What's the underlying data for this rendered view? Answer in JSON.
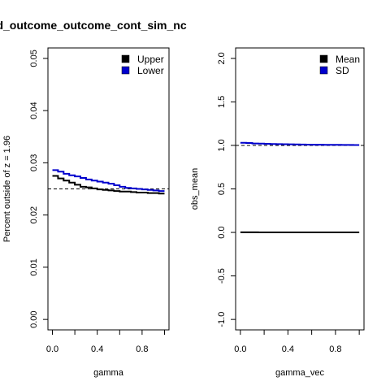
{
  "figure_title": "rd_outcome_outcome_cont_sim_nc",
  "chart_data": [
    {
      "type": "line",
      "title": "",
      "xlabel": "gamma",
      "ylabel": "Percent outside of z = 1.96",
      "xlim": [
        0,
        1
      ],
      "ylim": [
        0,
        0.05
      ],
      "x_ticks": [
        0.0,
        0.4,
        0.8
      ],
      "x_tick_labels": [
        "0.0",
        "0.4",
        "0.8"
      ],
      "x_minor_ticks": [
        0.2,
        0.6,
        1.0
      ],
      "y_ticks": [
        0.0,
        0.01,
        0.02,
        0.03,
        0.04,
        0.05
      ],
      "y_tick_labels": [
        "0.00",
        "0.01",
        "0.02",
        "0.03",
        "0.04",
        "0.05"
      ],
      "reference_line": {
        "y": 0.025,
        "style": "dashed",
        "color": "#000000"
      },
      "legend": {
        "position": "top-right",
        "entries": [
          "Upper",
          "Lower"
        ]
      },
      "x": [
        0.0,
        0.05,
        0.1,
        0.15,
        0.2,
        0.25,
        0.3,
        0.35,
        0.4,
        0.45,
        0.5,
        0.55,
        0.6,
        0.65,
        0.7,
        0.75,
        0.8,
        0.85,
        0.9,
        0.95,
        1.0
      ],
      "series": [
        {
          "name": "Upper",
          "color": "#000000",
          "values": [
            0.0275,
            0.027,
            0.0266,
            0.0262,
            0.0258,
            0.0254,
            0.0253,
            0.0251,
            0.0249,
            0.0248,
            0.0247,
            0.0246,
            0.0245,
            0.0245,
            0.0244,
            0.0243,
            0.0243,
            0.0242,
            0.0242,
            0.0241,
            0.0241
          ]
        },
        {
          "name": "Lower",
          "color": "#0000cd",
          "values": [
            0.0286,
            0.0283,
            0.0279,
            0.0276,
            0.0274,
            0.0271,
            0.0268,
            0.0266,
            0.0264,
            0.0262,
            0.026,
            0.0257,
            0.0254,
            0.0252,
            0.0251,
            0.025,
            0.0249,
            0.0248,
            0.0247,
            0.0246,
            0.0246
          ]
        }
      ]
    },
    {
      "type": "line",
      "title": "",
      "xlabel": "gamma_vec",
      "ylabel": "obs_mean",
      "xlim": [
        0,
        1
      ],
      "ylim": [
        -1.0,
        2.0
      ],
      "x_ticks": [
        0.0,
        0.4,
        0.8
      ],
      "x_tick_labels": [
        "0.0",
        "0.4",
        "0.8"
      ],
      "x_minor_ticks": [
        0.2,
        0.6,
        1.0
      ],
      "y_ticks": [
        -1.0,
        -0.5,
        0.0,
        0.5,
        1.0,
        1.5,
        2.0
      ],
      "y_tick_labels": [
        "-1.0",
        "-0.5",
        "0.0",
        "0.5",
        "1.0",
        "1.5",
        "2.0"
      ],
      "reference_line": {
        "y": 1.0,
        "style": "dashed",
        "color": "#000000"
      },
      "legend": {
        "position": "top-right",
        "entries": [
          "Mean",
          "SD"
        ]
      },
      "x": [
        0.0,
        0.05,
        0.1,
        0.15,
        0.2,
        0.25,
        0.3,
        0.35,
        0.4,
        0.45,
        0.5,
        0.55,
        0.6,
        0.65,
        0.7,
        0.75,
        0.8,
        0.85,
        0.9,
        0.95,
        1.0
      ],
      "series": [
        {
          "name": "Mean",
          "color": "#000000",
          "values": [
            0.002,
            0.002,
            0.002,
            0.001,
            0.001,
            0.001,
            0.001,
            0.001,
            0.001,
            0.001,
            0.001,
            0.001,
            0.001,
            0.001,
            0.001,
            0.001,
            0.001,
            0.001,
            0.001,
            0.001,
            0.001
          ]
        },
        {
          "name": "SD",
          "color": "#0000cd",
          "values": [
            1.03,
            1.027,
            1.022,
            1.02,
            1.018,
            1.016,
            1.015,
            1.013,
            1.012,
            1.011,
            1.01,
            1.009,
            1.008,
            1.008,
            1.007,
            1.006,
            1.006,
            1.005,
            1.005,
            1.004,
            1.004
          ]
        }
      ]
    }
  ]
}
